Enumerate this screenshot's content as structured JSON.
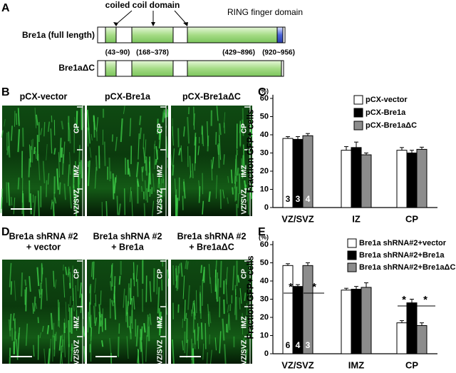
{
  "panel_labels": [
    "A",
    "B",
    "C",
    "D",
    "E"
  ],
  "schematic": {
    "coiled_coil_label": "coiled coil domain",
    "ring_label": "RING finger domain",
    "full_length": {
      "name": "Bre1a (full length)",
      "ranges": [
        "(43~90)",
        "(168~378)",
        "(429~896)",
        "(920~956)"
      ]
    },
    "delta_c": {
      "name": "Bre1aΔC"
    }
  },
  "images_b": {
    "titles": [
      [
        "pCX-vector"
      ],
      [
        "pCX-Bre1a"
      ],
      [
        "pCX-Bre1aΔC"
      ]
    ],
    "zones": [
      "CP",
      "IMZ",
      "VZ/SVZ"
    ]
  },
  "images_d": {
    "titles": [
      [
        "Bre1a shRNA #2",
        "+ vector"
      ],
      [
        "Bre1a shRNA #2",
        "+ Bre1a"
      ],
      [
        "Bre1a shRNA #2",
        "+ Bre1aΔC"
      ]
    ],
    "zones": [
      "CP",
      "IMZ",
      "VZ/SVZ"
    ]
  },
  "chart_data": [
    {
      "type": "bar",
      "y_label": "Fraction GFP+ cells",
      "y_unit": "(%)",
      "categories": [
        "VZ/SVZ",
        "IZ",
        "CP"
      ],
      "series": [
        {
          "name": "pCX-vector",
          "color": "#ffffff",
          "values": [
            38,
            31.5,
            31.5
          ],
          "errors": [
            1,
            2,
            1.5
          ]
        },
        {
          "name": "pCX-Bre1a",
          "color": "#000000",
          "values": [
            37.5,
            33,
            30
          ],
          "errors": [
            1.5,
            3,
            1.5
          ]
        },
        {
          "name": "pCX-Bre1aΔC",
          "color": "#8c8c8c",
          "values": [
            39.5,
            29,
            32
          ],
          "errors": [
            1.2,
            1,
            1.2
          ]
        }
      ],
      "n_labels": [
        3,
        3,
        4
      ],
      "ylim": [
        0,
        62
      ],
      "yticks": [
        0,
        10,
        20,
        30,
        40,
        50,
        60
      ]
    },
    {
      "type": "bar",
      "y_label": "Fraction GFP+ cells",
      "y_unit": "(%)",
      "categories": [
        "VZ/SVZ",
        "IMZ",
        "CP"
      ],
      "series": [
        {
          "name": "Bre1a shRNA#2+vector",
          "color": "#ffffff",
          "values": [
            48.5,
            35,
            17
          ],
          "errors": [
            1,
            1,
            1.2
          ]
        },
        {
          "name": "Bre1a shRNA#2+Bre1a",
          "color": "#000000",
          "values": [
            37,
            35.5,
            28
          ],
          "errors": [
            1,
            1.5,
            2
          ]
        },
        {
          "name": "Bre1a shRNA#2+Bre1aΔC",
          "color": "#8c8c8c",
          "values": [
            48.5,
            36.5,
            15.5
          ],
          "errors": [
            1.5,
            2.5,
            1.5
          ]
        }
      ],
      "n_labels": [
        6,
        4,
        3
      ],
      "significance_labels": [
        "*",
        "*",
        "*",
        "*"
      ],
      "ylim": [
        0,
        62
      ],
      "yticks": [
        0,
        10,
        20,
        30,
        40,
        50,
        60
      ]
    }
  ]
}
